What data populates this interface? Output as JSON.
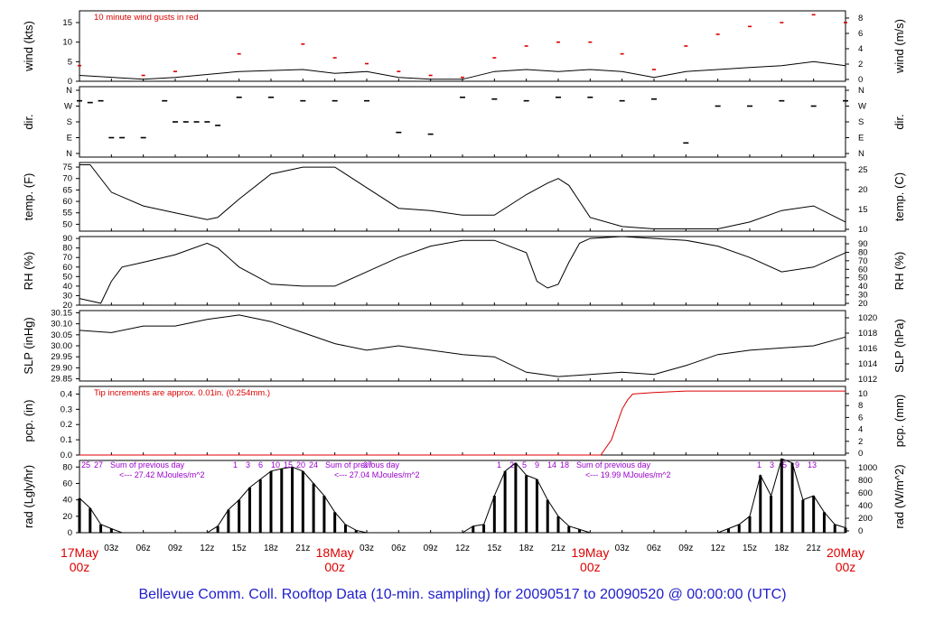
{
  "footer_title": "Bellevue Comm. Coll. Rooftop Data (10-min. sampling) for 20090517  to  20090520 @ 00:00:00  (UTC)",
  "colors": {
    "line": "#000000",
    "red": "#dd0000",
    "purple": "#9900cc",
    "footer": "#2020cc"
  },
  "chart_data": {
    "type": "line",
    "x_axis": {
      "ticks": [
        "03z",
        "06z",
        "09z",
        "12z",
        "15z",
        "18z",
        "21z",
        "03z",
        "06z",
        "09z",
        "12z",
        "15z",
        "18z",
        "21z",
        "03z",
        "06z",
        "09z",
        "12z",
        "15z",
        "18z",
        "21z"
      ],
      "day_labels": [
        {
          "date": "17May",
          "time": "00z"
        },
        {
          "date": "18May",
          "time": "00z"
        },
        {
          "date": "19May",
          "time": "00z"
        },
        {
          "date": "20May",
          "time": "00z"
        }
      ]
    },
    "panels": [
      {
        "key": "wind",
        "ylabel": "wind (kts)",
        "ylabel_right": "wind (m/s)",
        "annotation": "10  minute wind gusts in red",
        "yticks": [
          0,
          5,
          10,
          15
        ],
        "yticks_right": [
          "0",
          "2",
          "4",
          "6",
          "8"
        ],
        "ylim": [
          0,
          18
        ],
        "series": [
          {
            "kind": "line",
            "color": "#000000",
            "x": [
              0,
              6,
              9,
              15,
              21,
              24,
              27,
              30,
              33,
              36,
              39,
              42,
              45,
              48,
              51,
              54,
              57,
              60,
              63,
              66,
              69,
              72
            ],
            "values": [
              1.5,
              0.5,
              1.0,
              2.5,
              3.0,
              2.0,
              2.5,
              1.0,
              0.5,
              0.5,
              2.5,
              3.0,
              2.5,
              3.0,
              2.5,
              1.0,
              2.5,
              3.0,
              3.5,
              4.0,
              5.0,
              4.0
            ]
          },
          {
            "kind": "points",
            "color": "#dd0000",
            "x": [
              0,
              6,
              9,
              15,
              21,
              24,
              27,
              30,
              33,
              36,
              39,
              42,
              45,
              48,
              51,
              54,
              57,
              60,
              63,
              66,
              69,
              72
            ],
            "values": [
              4,
              1.5,
              2.5,
              7,
              9.5,
              6,
              4.5,
              2.5,
              1.5,
              1,
              6,
              9,
              10,
              10,
              7,
              3,
              9,
              12,
              14,
              15,
              17,
              15
            ]
          }
        ]
      },
      {
        "key": "dir",
        "ylabel": "dir.",
        "ylabel_right": "dir.",
        "yticks": [
          "N",
          "W",
          "S",
          "E",
          "N"
        ],
        "yticks_right": [
          "N",
          "W",
          "S",
          "E",
          "N"
        ],
        "series": [
          {
            "kind": "dash",
            "color": "#000000",
            "x": [
              0,
              1,
              2,
              3,
              4,
              6,
              8,
              9,
              10,
              11,
              12,
              13,
              15,
              18,
              21,
              24,
              27,
              30,
              33,
              36,
              39,
              42,
              45,
              48,
              51,
              54,
              57,
              60,
              63,
              66,
              69,
              72
            ],
            "values": [
              300,
              290,
              300,
              90,
              90,
              90,
              300,
              180,
              180,
              180,
              180,
              160,
              320,
              320,
              300,
              300,
              300,
              120,
              110,
              320,
              310,
              300,
              320,
              320,
              300,
              310,
              60,
              270,
              270,
              300,
              270,
              300
            ]
          }
        ]
      },
      {
        "key": "temp",
        "ylabel": "temp. (F)",
        "ylabel_right": "temp. (C)",
        "yticks": [
          50,
          55,
          60,
          65,
          70,
          75
        ],
        "yticks_right": [
          "10",
          "15",
          "20",
          "25"
        ],
        "ylim": [
          47,
          77
        ],
        "series": [
          {
            "kind": "line",
            "color": "#000000",
            "x": [
              0,
              1,
              3,
              6,
              9,
              12,
              13,
              15,
              18,
              21,
              24,
              27,
              30,
              33,
              36,
              39,
              42,
              44,
              45,
              46,
              48,
              51,
              54,
              57,
              60,
              63,
              66,
              69,
              72
            ],
            "values": [
              76,
              76,
              64,
              58,
              55,
              52,
              53,
              61,
              72,
              75,
              75,
              66,
              57,
              56,
              54,
              54,
              63,
              68,
              70,
              67,
              53,
              49,
              48,
              48,
              48,
              51,
              56,
              58,
              51
            ]
          }
        ]
      },
      {
        "key": "rh",
        "ylabel": "RH (%)",
        "ylabel_right": "RH (%)",
        "yticks": [
          20,
          30,
          40,
          50,
          60,
          70,
          80,
          90
        ],
        "yticks_right": [
          "20",
          "30",
          "40",
          "50",
          "60",
          "70",
          "80",
          "90"
        ],
        "ylim": [
          20,
          92
        ],
        "series": [
          {
            "kind": "line",
            "color": "#000000",
            "x": [
              0,
              2,
              3,
              4,
              6,
              9,
              12,
              13,
              15,
              18,
              21,
              24,
              27,
              30,
              33,
              36,
              39,
              42,
              43,
              44,
              45,
              46,
              47,
              48,
              51,
              54,
              57,
              60,
              63,
              66,
              69,
              72
            ],
            "values": [
              27,
              22,
              45,
              60,
              65,
              73,
              85,
              80,
              60,
              42,
              40,
              40,
              55,
              70,
              82,
              88,
              88,
              75,
              45,
              38,
              42,
              65,
              85,
              90,
              92,
              90,
              88,
              82,
              70,
              55,
              60,
              75
            ]
          }
        ]
      },
      {
        "key": "slp",
        "ylabel": "SLP (inHg)",
        "ylabel_right": "SLP (hPa)",
        "yticks": [
          "29.85",
          "29.90",
          "29.95",
          "30.00",
          "30.05",
          "30.10",
          "30.15"
        ],
        "yticks_right": [
          "1012",
          "1014",
          "1016",
          "1018",
          "1020"
        ],
        "ylim": [
          29.84,
          30.16
        ],
        "series": [
          {
            "kind": "line",
            "color": "#000000",
            "x": [
              0,
              3,
              6,
              9,
              12,
              15,
              18,
              21,
              24,
              27,
              30,
              33,
              36,
              39,
              42,
              45,
              48,
              51,
              54,
              57,
              60,
              63,
              66,
              69,
              72
            ],
            "values": [
              30.07,
              30.06,
              30.09,
              30.09,
              30.12,
              30.14,
              30.11,
              30.06,
              30.01,
              29.98,
              30.0,
              29.98,
              29.96,
              29.95,
              29.88,
              29.86,
              29.87,
              29.88,
              29.87,
              29.91,
              29.96,
              29.98,
              29.99,
              30.0,
              30.04
            ]
          }
        ]
      },
      {
        "key": "pcp",
        "ylabel": "pcp. (in)",
        "ylabel_right": "pcp. (mm)",
        "annotation": "Tip increments are approx. 0.01in. (0.254mm.)",
        "yticks": [
          "0.0",
          "0.1",
          "0.2",
          "0.3",
          "0.4"
        ],
        "yticks_right": [
          "0",
          "2",
          "4",
          "6",
          "8",
          "10"
        ],
        "ylim": [
          0,
          0.45
        ],
        "series": [
          {
            "kind": "line",
            "color": "#dd0000",
            "x": [
              0,
              49,
              50,
              51,
              51.5,
              52,
              54,
              57,
              60,
              63,
              66,
              69,
              72
            ],
            "values": [
              0,
              0,
              0.1,
              0.3,
              0.36,
              0.4,
              0.41,
              0.42,
              0.42,
              0.42,
              0.42,
              0.42,
              0.42
            ]
          }
        ]
      },
      {
        "key": "rad",
        "ylabel": "rad (Lgly/hr)",
        "ylabel_right": "rad (W/m^2)",
        "yticks": [
          0,
          20,
          40,
          60,
          80
        ],
        "yticks_right": [
          "0",
          "200",
          "400",
          "600",
          "800",
          "1000"
        ],
        "ylim": [
          0,
          88
        ],
        "day_markers": [
          {
            "hours": [
              "25",
              "27"
            ],
            "sum_label": "Sum of previous day",
            "sum_value": "<--- 27.42 MJoules/m^2"
          },
          {
            "hours": [
              "1",
              "3",
              "6",
              "10",
              "15",
              "20",
              "24"
            ],
            "sum_label": "Sum of previous day",
            "sum_value": "<--- 27.04 MJoules/m^2"
          },
          {
            "hours": [
              "27"
            ]
          },
          {
            "hours": [
              "1",
              "2",
              "5",
              "9",
              "14",
              "18"
            ],
            "sum_label": "Sum of previous day",
            "sum_value": "<--- 19.99 MJoules/m^2"
          },
          {
            "hours": [
              "1",
              "3",
              "5",
              "9",
              "13"
            ]
          }
        ],
        "series": [
          {
            "kind": "bars",
            "color": "#000000",
            "x": [
              0,
              1,
              2,
              3,
              4,
              12,
              13,
              14,
              15,
              16,
              17,
              18,
              19,
              20,
              21,
              22,
              23,
              24,
              25,
              26,
              27,
              36,
              37,
              38,
              39,
              40,
              41,
              42,
              43,
              44,
              45,
              46,
              47,
              48,
              60,
              61,
              62,
              63,
              64,
              65,
              66,
              67,
              68,
              69,
              70,
              71,
              72
            ],
            "values": [
              42,
              30,
              10,
              5,
              0,
              0,
              8,
              28,
              40,
              55,
              65,
              75,
              78,
              80,
              75,
              60,
              45,
              25,
              10,
              3,
              0,
              0,
              8,
              10,
              45,
              75,
              85,
              70,
              65,
              40,
              20,
              8,
              4,
              0,
              0,
              5,
              10,
              20,
              70,
              45,
              90,
              85,
              40,
              45,
              25,
              10,
              6
            ]
          }
        ]
      }
    ]
  }
}
